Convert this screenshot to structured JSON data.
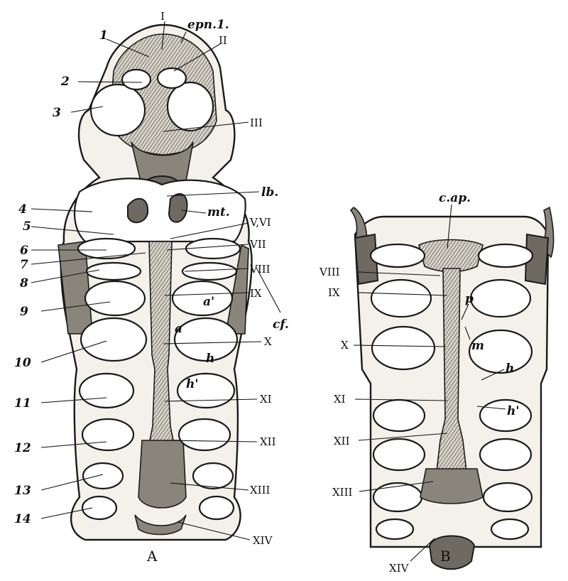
{
  "figure_a": {
    "caption": "A",
    "labels_left": [
      "1",
      "2",
      "3",
      "4",
      "5",
      "6",
      "7",
      "8",
      "9",
      "10",
      "11",
      "12",
      "13",
      "14"
    ],
    "labels_right": [
      "I",
      "epn.1.",
      "II",
      "III",
      "lb.",
      "mt.",
      "V,VI",
      "VII",
      "VIII",
      "IX",
      "cf.",
      "a'",
      "a",
      "X",
      "h",
      "h'",
      "XI",
      "XII",
      "XIII",
      "XIV"
    ]
  },
  "figure_b": {
    "caption": "B",
    "labels": [
      "c.ap.",
      "VIII",
      "IX",
      "p",
      "X",
      "m",
      "h",
      "XI",
      "h'",
      "XII",
      "XIII",
      "XIV"
    ]
  }
}
